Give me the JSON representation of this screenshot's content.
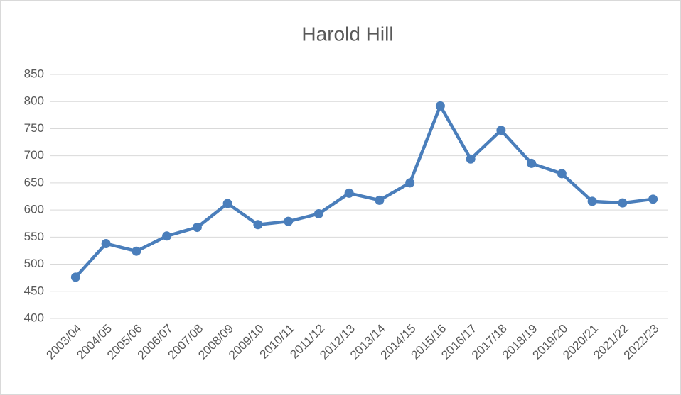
{
  "chart_data": {
    "type": "line",
    "title": "Harold Hill",
    "categories": [
      "2003/04",
      "2004/05",
      "2005/06",
      "2006/07",
      "2007/08",
      "2008/09",
      "2009/10",
      "2010/11",
      "2011/12",
      "2012/13",
      "2013/14",
      "2014/15",
      "2015/16",
      "2016/17",
      "2017/18",
      "2018/19",
      "2019/20",
      "2020/21",
      "2021/22",
      "2022/23"
    ],
    "series": [
      {
        "name": "Harold Hill",
        "color": "#4a7ebb",
        "values": [
          476,
          538,
          524,
          552,
          568,
          612,
          573,
          579,
          593,
          631,
          618,
          650,
          792,
          694,
          747,
          686,
          667,
          616,
          613,
          620
        ]
      }
    ],
    "ylim": [
      400,
      850
    ],
    "yticks": [
      400,
      450,
      500,
      550,
      600,
      650,
      700,
      750,
      800,
      850
    ],
    "grid": true
  }
}
